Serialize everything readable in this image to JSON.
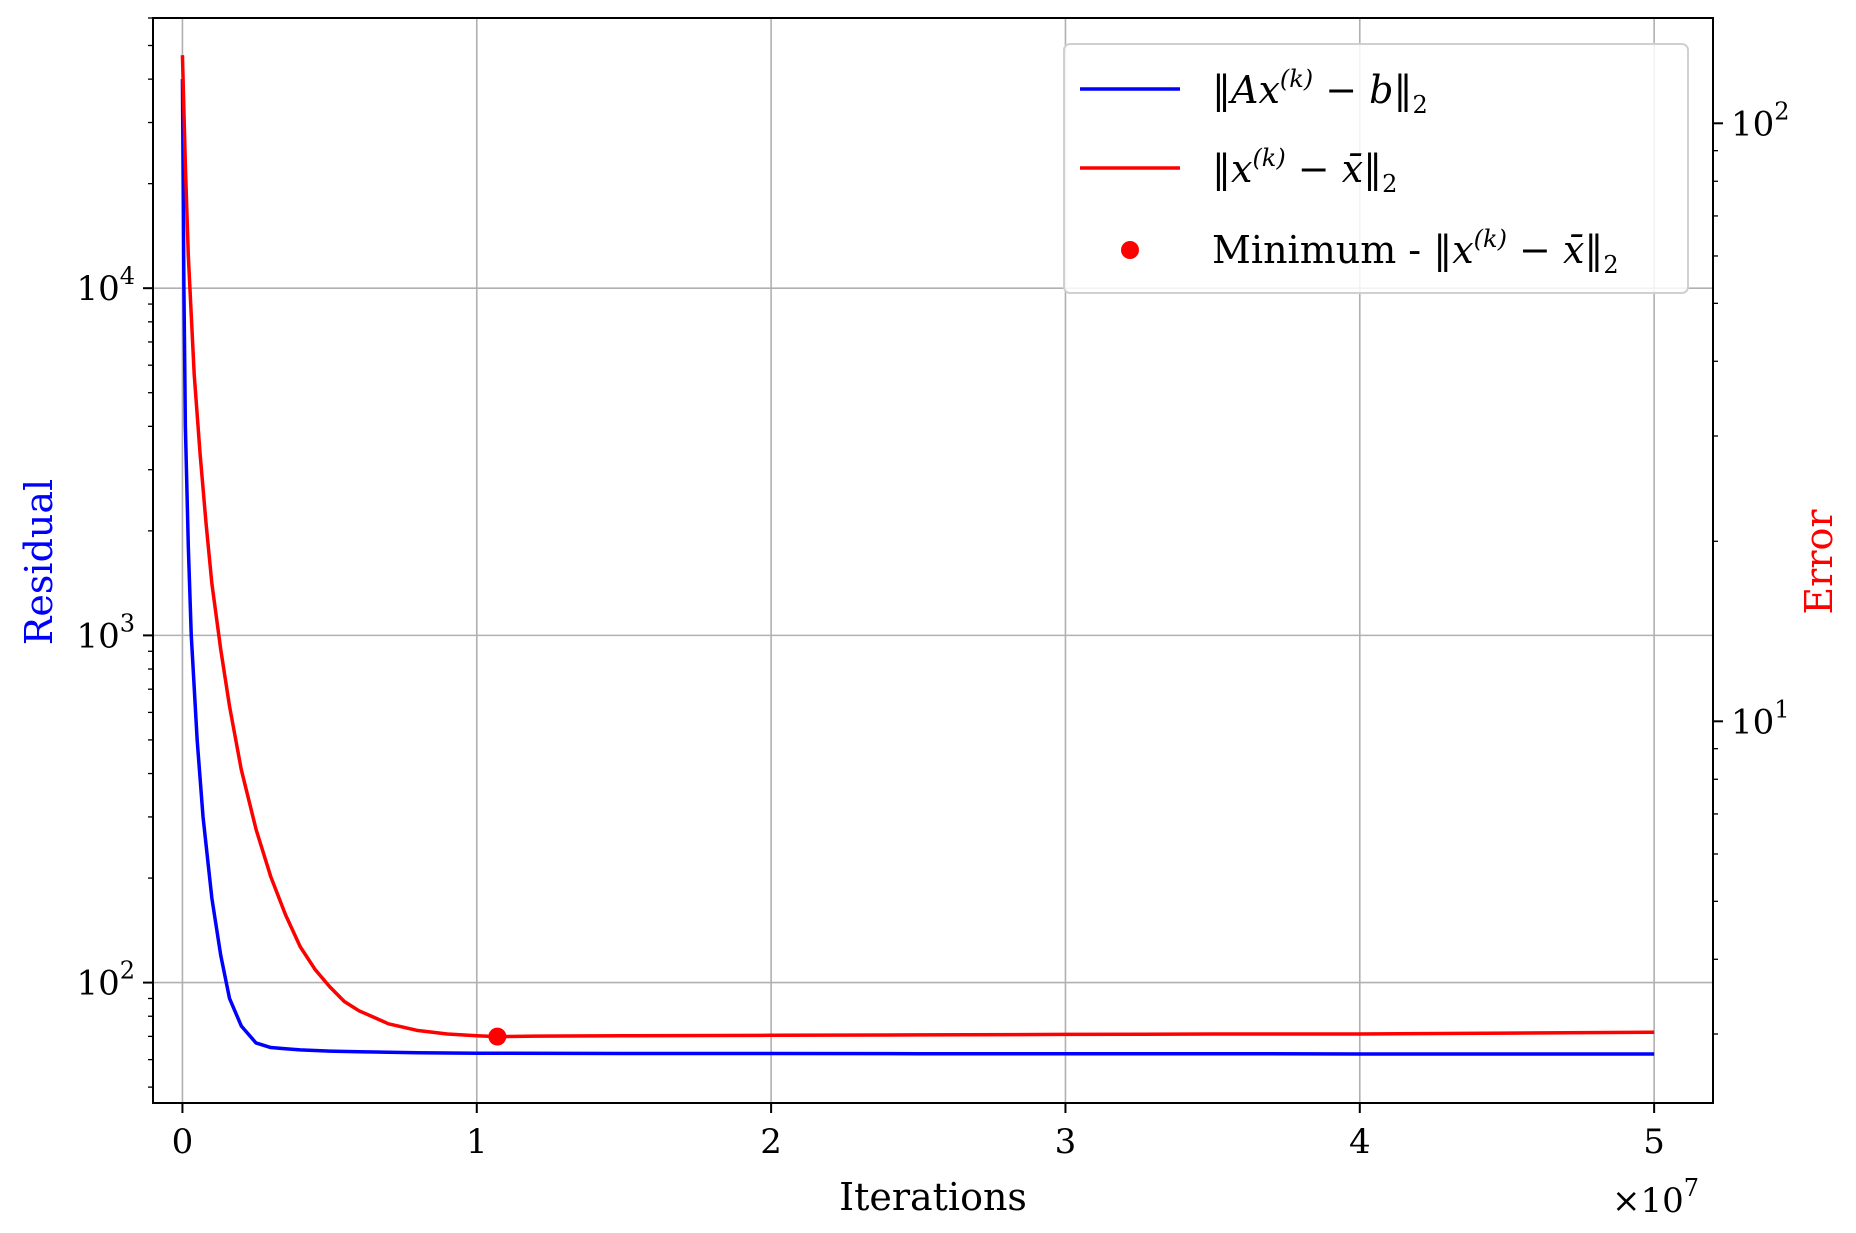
{
  "chart_data": {
    "type": "line",
    "xlabel": "Iterations",
    "x_multiplier_label": "×10",
    "x_multiplier_exp": "7",
    "xlim": [
      -1000000,
      52000000
    ],
    "x_ticks": [
      0,
      10000000,
      20000000,
      30000000,
      40000000,
      50000000
    ],
    "x_tick_labels": [
      "0",
      "1",
      "2",
      "3",
      "4",
      "5"
    ],
    "left_axis": {
      "label": "Residual",
      "color": "#0000ff",
      "scale": "log",
      "ylim": [
        45,
        60000
      ],
      "major_ticks": [
        100,
        1000,
        10000
      ],
      "major_tick_bases": [
        "10",
        "10",
        "10"
      ],
      "major_tick_exps": [
        "2",
        "3",
        "4"
      ]
    },
    "right_axis": {
      "label": "Error",
      "color": "#ff0000",
      "scale": "log",
      "ylim": [
        2.3,
        150
      ],
      "major_ticks": [
        10,
        100
      ],
      "major_tick_bases": [
        "10",
        "10"
      ],
      "major_tick_exps": [
        "1",
        "2"
      ]
    },
    "grid": true,
    "legend": "top-right",
    "series": [
      {
        "name": "‖Ax(k) − b‖2",
        "axis": "left",
        "color": "#0000ff",
        "x": [
          0,
          50000,
          100000,
          200000,
          300000,
          500000,
          700000,
          1000000,
          1300000,
          1600000,
          2000000,
          2500000,
          3000000,
          3500000,
          4000000,
          5000000,
          6000000,
          7000000,
          8000000,
          10000000,
          15000000,
          20000000,
          25000000,
          30000000,
          35000000,
          40000000,
          45000000,
          50000000
        ],
        "y": [
          40000,
          10000,
          4000,
          1800,
          1000,
          500,
          300,
          175,
          120,
          90,
          75,
          67,
          65,
          64.5,
          64,
          63.5,
          63.2,
          63,
          62.8,
          62.6,
          62.5,
          62.5,
          62.4,
          62.4,
          62.4,
          62.3,
          62.3,
          62.3
        ]
      },
      {
        "name": "‖x(k) − x̄‖2",
        "axis": "right",
        "color": "#ff0000",
        "x": [
          0,
          100000,
          200000,
          400000,
          600000,
          800000,
          1000000,
          1300000,
          1600000,
          2000000,
          2500000,
          3000000,
          3500000,
          4000000,
          4500000,
          5000000,
          5500000,
          6000000,
          6500000,
          7000000,
          8000000,
          9000000,
          10000000,
          10700000,
          12000000,
          15000000,
          20000000,
          25000000,
          30000000,
          35000000,
          40000000,
          45000000,
          50000000
        ],
        "y": [
          130,
          85,
          60,
          38,
          28,
          21.5,
          17,
          13.2,
          10.6,
          8.3,
          6.6,
          5.5,
          4.75,
          4.2,
          3.85,
          3.6,
          3.4,
          3.28,
          3.2,
          3.12,
          3.04,
          3.0,
          2.98,
          2.97,
          2.975,
          2.98,
          2.985,
          2.99,
          2.995,
          3.0,
          3.0,
          3.01,
          3.02
        ]
      }
    ],
    "markers": [
      {
        "name": "Minimum - ‖x(k) − x̄‖2",
        "axis": "right",
        "color": "#ff0000",
        "x": 10700000,
        "y": 2.97
      }
    ]
  },
  "legend": {
    "entries": [
      {
        "name": "‖Ax(k) − b‖2",
        "pre": "‖Ax",
        "sup": "(k)",
        "mid": " − b‖",
        "sub": "2"
      },
      {
        "name": "‖x(k) − x̄‖2",
        "pre": "‖x",
        "sup": "(k)",
        "mid": " − x̄‖",
        "sub": "2"
      },
      {
        "name": "Minimum - ‖x(k) − x̄‖2",
        "lead": "Minimum - ",
        "pre": "‖x",
        "sup": "(k)",
        "mid": " − x̄‖",
        "sub": "2"
      }
    ]
  }
}
